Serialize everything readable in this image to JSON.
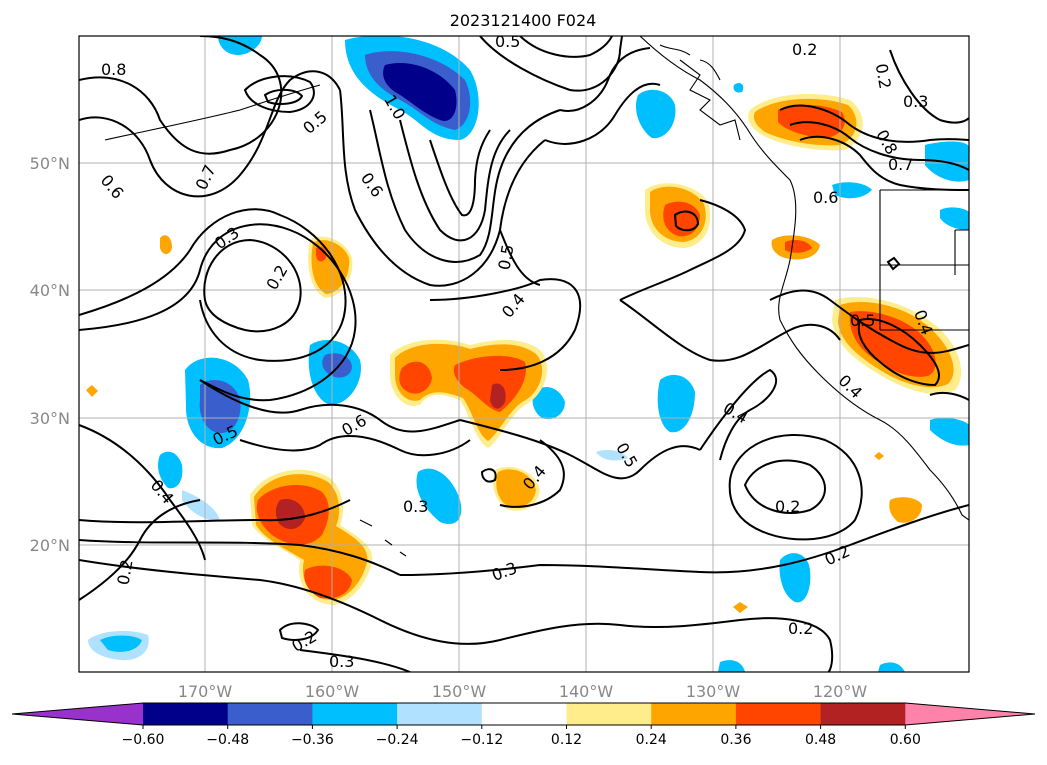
{
  "title": "2023121400 F024",
  "lon_labels": [
    "170°W",
    "160°W",
    "150°W",
    "140°W",
    "130°W",
    "120°W"
  ],
  "lat_labels": [
    "50°N",
    "40°N",
    "30°N",
    "20°N"
  ],
  "colorbar": {
    "ticks": [
      "−0.60",
      "−0.48",
      "−0.36",
      "−0.24",
      "−0.12",
      "0.12",
      "0.24",
      "0.36",
      "0.48",
      "0.60"
    ],
    "colors": [
      "#9932cc",
      "#00008b",
      "#3a5fcd",
      "#00bfff",
      "#b0e2ff",
      "#ffffff",
      "#ffec8b",
      "#ffa500",
      "#ff4500",
      "#b22222",
      "#ff82ab"
    ]
  },
  "contour_labels": [
    "0.8",
    "0.5",
    "0.2",
    "0.2",
    "0.3",
    "0.5",
    "1.0",
    "0.7",
    "0.6",
    "0.6",
    "0.3",
    "0.2",
    "0.5",
    "0.4",
    "0.8",
    "0.7",
    "0.6",
    "0.5",
    "0.4",
    "0.4",
    "0.4",
    "0.6",
    "0.5",
    "0.4",
    "0.3",
    "0.3",
    "0.2",
    "0.2",
    "0.2",
    "0.2",
    "0.2",
    "0.3",
    "0.4",
    "0.5"
  ]
}
